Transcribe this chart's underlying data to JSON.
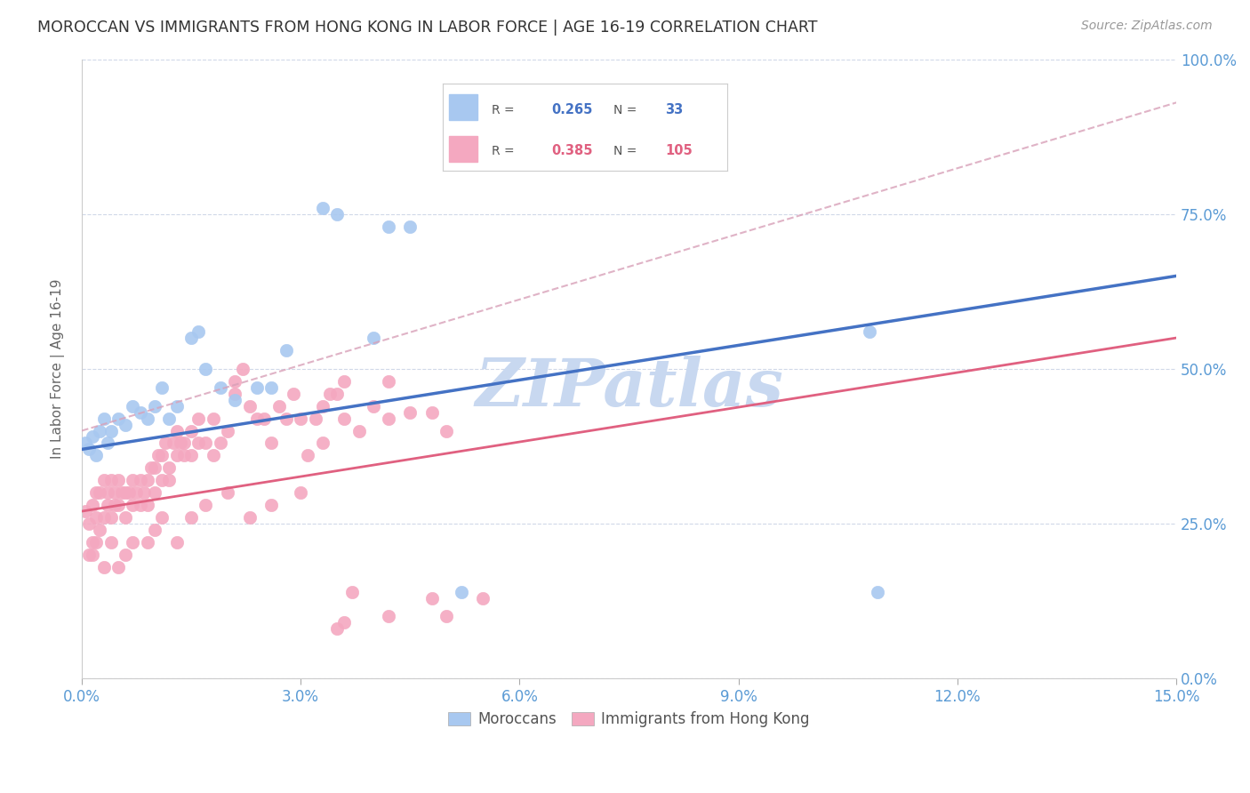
{
  "title": "MOROCCAN VS IMMIGRANTS FROM HONG KONG IN LABOR FORCE | AGE 16-19 CORRELATION CHART",
  "source": "Source: ZipAtlas.com",
  "xlabel_values": [
    0.0,
    3.0,
    6.0,
    9.0,
    12.0,
    15.0
  ],
  "ylabel_values": [
    0,
    25,
    50,
    75,
    100
  ],
  "xlim": [
    0.0,
    15.0
  ],
  "ylim": [
    0.0,
    100.0
  ],
  "ylabel": "In Labor Force | Age 16-19",
  "blue_R": 0.265,
  "blue_N": 33,
  "pink_R": 0.385,
  "pink_N": 105,
  "blue_color": "#a8c8f0",
  "pink_color": "#f4a8c0",
  "blue_line_color": "#4472c4",
  "pink_line_color": "#e06080",
  "dashed_line_color": "#d8a0b8",
  "watermark": "ZIPatlas",
  "watermark_color": "#c8d8f0",
  "background_color": "#ffffff",
  "blue_scatter_x": [
    0.05,
    0.1,
    0.15,
    0.2,
    0.25,
    0.3,
    0.35,
    0.4,
    0.5,
    0.6,
    0.7,
    0.8,
    0.9,
    1.0,
    1.1,
    1.2,
    1.3,
    1.5,
    1.6,
    1.7,
    1.9,
    2.1,
    2.4,
    2.6,
    2.8,
    3.3,
    3.5,
    4.0,
    4.2,
    4.5,
    5.2,
    10.8,
    10.9
  ],
  "blue_scatter_y": [
    38,
    37,
    39,
    36,
    40,
    42,
    38,
    40,
    42,
    41,
    44,
    43,
    42,
    44,
    47,
    42,
    44,
    55,
    56,
    50,
    47,
    45,
    47,
    47,
    53,
    76,
    75,
    55,
    73,
    73,
    14,
    56,
    14
  ],
  "pink_scatter_x": [
    0.05,
    0.1,
    0.1,
    0.15,
    0.15,
    0.2,
    0.2,
    0.25,
    0.25,
    0.3,
    0.3,
    0.35,
    0.35,
    0.4,
    0.4,
    0.45,
    0.45,
    0.5,
    0.5,
    0.55,
    0.6,
    0.6,
    0.65,
    0.7,
    0.7,
    0.75,
    0.8,
    0.8,
    0.85,
    0.9,
    0.9,
    0.95,
    1.0,
    1.0,
    1.05,
    1.1,
    1.1,
    1.15,
    1.2,
    1.2,
    1.25,
    1.3,
    1.3,
    1.35,
    1.4,
    1.4,
    1.5,
    1.5,
    1.6,
    1.6,
    1.7,
    1.8,
    1.8,
    1.9,
    2.0,
    2.1,
    2.1,
    2.2,
    2.3,
    2.4,
    2.5,
    2.6,
    2.7,
    2.8,
    2.9,
    3.0,
    3.1,
    3.2,
    3.3,
    3.4,
    3.5,
    3.6,
    3.6,
    3.8,
    4.0,
    4.2,
    4.2,
    4.5,
    4.8,
    5.0,
    0.15,
    0.2,
    0.3,
    0.4,
    0.5,
    0.6,
    0.7,
    0.9,
    1.0,
    1.1,
    1.3,
    1.5,
    1.7,
    2.0,
    2.3,
    2.6,
    3.0,
    3.3,
    3.7,
    4.2,
    5.5,
    3.5,
    3.6,
    4.8,
    5.0
  ],
  "pink_scatter_y": [
    27,
    25,
    20,
    22,
    28,
    26,
    30,
    24,
    30,
    26,
    32,
    28,
    30,
    26,
    32,
    30,
    28,
    28,
    32,
    30,
    30,
    26,
    30,
    28,
    32,
    30,
    28,
    32,
    30,
    32,
    28,
    34,
    34,
    30,
    36,
    32,
    36,
    38,
    32,
    34,
    38,
    36,
    40,
    38,
    36,
    38,
    40,
    36,
    38,
    42,
    38,
    36,
    42,
    38,
    40,
    48,
    46,
    50,
    44,
    42,
    42,
    38,
    44,
    42,
    46,
    42,
    36,
    42,
    44,
    46,
    46,
    42,
    48,
    40,
    44,
    42,
    48,
    43,
    43,
    40,
    20,
    22,
    18,
    22,
    18,
    20,
    22,
    22,
    24,
    26,
    22,
    26,
    28,
    30,
    26,
    28,
    30,
    38,
    14,
    10,
    13,
    8,
    9,
    13,
    10
  ]
}
